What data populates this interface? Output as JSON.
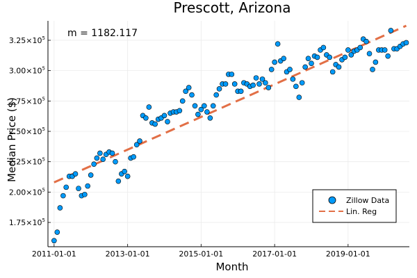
{
  "chart_data": {
    "type": "scatter",
    "title": "Prescott, Arizona",
    "xlabel": "Month",
    "ylabel": "Median Price ($)",
    "annotation": "m = 1182.117",
    "grid": true,
    "legend_position": "bottom-right",
    "x_axis": {
      "type": "date",
      "range": [
        "2010-11-01",
        "2020-09-01"
      ],
      "tick_values": [
        "2011-01-01",
        "2013-01-01",
        "2015-01-01",
        "2017-01-01",
        "2019-01-01"
      ],
      "tick_labels": [
        "2011-01-01",
        "2013-01-01",
        "2015-01-01",
        "2017-01-01",
        "2019-01-01"
      ]
    },
    "y_axis": {
      "range": [
        155000,
        341000
      ],
      "tick_values": [
        175000,
        200000,
        225000,
        250000,
        275000,
        300000,
        325000
      ],
      "tick_mantissas": [
        "1.75",
        "2.00",
        "2.25",
        "2.50",
        "2.75",
        "3.00",
        "3.25"
      ],
      "tick_base": "×10",
      "tick_exponent": "5"
    },
    "colors": {
      "scatter": "#009af9",
      "scatter_edge": "#000000",
      "regression": "#e26f46",
      "grid": "#ebebeb"
    },
    "series": [
      {
        "name": "Zillow Data",
        "kind": "scatter",
        "x": [
          "2011-01",
          "2011-02",
          "2011-03",
          "2011-04",
          "2011-05",
          "2011-06",
          "2011-07",
          "2011-08",
          "2011-09",
          "2011-10",
          "2011-11",
          "2011-12",
          "2012-01",
          "2012-02",
          "2012-03",
          "2012-04",
          "2012-05",
          "2012-06",
          "2012-07",
          "2012-08",
          "2012-09",
          "2012-10",
          "2012-11",
          "2012-12",
          "2013-01",
          "2013-02",
          "2013-03",
          "2013-04",
          "2013-05",
          "2013-06",
          "2013-07",
          "2013-08",
          "2013-09",
          "2013-10",
          "2013-11",
          "2013-12",
          "2014-01",
          "2014-02",
          "2014-03",
          "2014-04",
          "2014-05",
          "2014-06",
          "2014-07",
          "2014-08",
          "2014-09",
          "2014-10",
          "2014-11",
          "2014-12",
          "2015-01",
          "2015-02",
          "2015-03",
          "2015-04",
          "2015-05",
          "2015-06",
          "2015-07",
          "2015-08",
          "2015-09",
          "2015-10",
          "2015-11",
          "2015-12",
          "2016-01",
          "2016-02",
          "2016-03",
          "2016-04",
          "2016-05",
          "2016-06",
          "2016-07",
          "2016-08",
          "2016-09",
          "2016-10",
          "2016-11",
          "2016-12",
          "2017-01",
          "2017-02",
          "2017-03",
          "2017-04",
          "2017-05",
          "2017-06",
          "2017-07",
          "2017-08",
          "2017-09",
          "2017-10",
          "2017-11",
          "2017-12",
          "2018-01",
          "2018-02",
          "2018-03",
          "2018-04",
          "2018-05",
          "2018-06",
          "2018-07",
          "2018-08",
          "2018-09",
          "2018-10",
          "2018-11",
          "2018-12",
          "2019-01",
          "2019-02",
          "2019-03",
          "2019-04",
          "2019-05",
          "2019-06",
          "2019-07",
          "2019-08",
          "2019-09",
          "2019-10",
          "2019-11",
          "2019-12",
          "2020-01",
          "2020-02",
          "2020-03",
          "2020-04",
          "2020-05",
          "2020-06",
          "2020-07",
          "2020-08"
        ],
        "y": [
          160000,
          167000,
          187000,
          197000,
          204000,
          213000,
          213000,
          215000,
          203000,
          197000,
          198000,
          205000,
          214000,
          223000,
          228000,
          232000,
          227000,
          231000,
          233000,
          232000,
          225000,
          209000,
          215000,
          217000,
          213000,
          228000,
          229000,
          239000,
          242000,
          263000,
          261000,
          270000,
          257000,
          256000,
          260000,
          261000,
          263000,
          258000,
          265000,
          266000,
          266000,
          267000,
          275000,
          283000,
          286000,
          280000,
          271000,
          264000,
          268000,
          271000,
          266000,
          261000,
          271000,
          280000,
          285000,
          289000,
          289000,
          297000,
          297000,
          289000,
          283000,
          283000,
          290000,
          289000,
          287000,
          288000,
          294000,
          289000,
          293000,
          290000,
          286000,
          301000,
          307000,
          322000,
          308000,
          310000,
          299000,
          301000,
          293000,
          287000,
          278000,
          290000,
          303000,
          310000,
          306000,
          312000,
          311000,
          317000,
          319000,
          313000,
          311000,
          299000,
          305000,
          303000,
          309000,
          311000,
          317000,
          313000,
          316000,
          317000,
          319000,
          326000,
          324000,
          314000,
          301000,
          307000,
          317000,
          317000,
          317000,
          312000,
          333000,
          318000,
          318000,
          320000,
          322000,
          323000
        ]
      },
      {
        "name": "Lin. Reg",
        "kind": "line",
        "x": [
          "2011-01-01",
          "2020-08-01"
        ],
        "y": [
          208000,
          337000
        ]
      }
    ]
  }
}
